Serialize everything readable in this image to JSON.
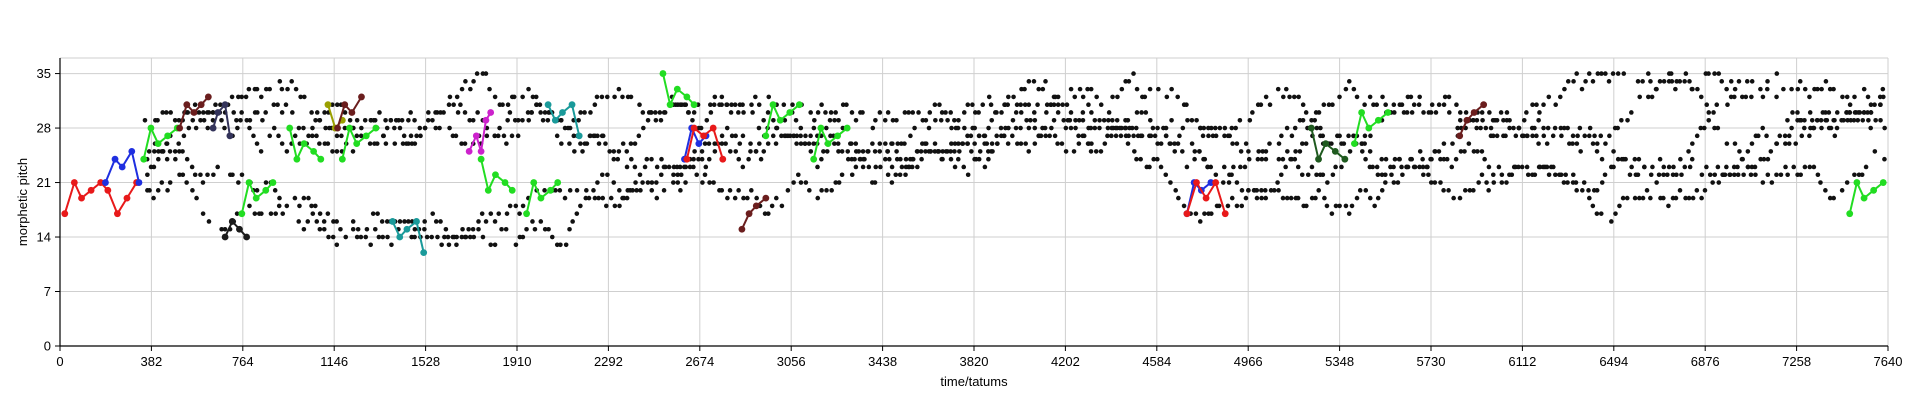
{
  "chart_data": {
    "type": "scatter",
    "title": "",
    "xlabel": "time/tatums",
    "ylabel": "morphetic pitch",
    "xlim": [
      0,
      7640
    ],
    "ylim": [
      0,
      37
    ],
    "x_ticks": [
      0,
      382,
      764,
      1146,
      1528,
      1910,
      2292,
      2674,
      3056,
      3438,
      3820,
      4202,
      4584,
      4966,
      5348,
      5730,
      6112,
      6494,
      6876,
      7258,
      7640
    ],
    "y_ticks": [
      0,
      7,
      14,
      21,
      28,
      35
    ],
    "grid": true,
    "legend": "none",
    "note_color": "#000000",
    "background_points": {
      "seed": 7,
      "count": 2100,
      "x_range": [
        0,
        7640
      ],
      "description_free": true
    },
    "series": [
      {
        "color": "#e8191a",
        "x": [
          20,
          60,
          90,
          130,
          170,
          200,
          240,
          280,
          320
        ],
        "y": [
          17,
          21,
          19,
          20,
          21,
          20,
          17,
          19,
          21
        ]
      },
      {
        "color": "#1f2fe0",
        "x": [
          190,
          230,
          260,
          300,
          330
        ],
        "y": [
          21,
          24,
          23,
          25,
          21
        ]
      },
      {
        "color": "#22dd22",
        "x": [
          350,
          380,
          410,
          450,
          490
        ],
        "y": [
          24,
          28,
          26,
          27,
          28
        ]
      },
      {
        "color": "#6b1e1e",
        "x": [
          500,
          530,
          560,
          590,
          620
        ],
        "y": [
          28,
          31,
          30,
          31,
          32
        ]
      },
      {
        "color": "#33335a",
        "x": [
          640,
          660,
          690,
          710
        ],
        "y": [
          28,
          30,
          31,
          27
        ]
      },
      {
        "color": "#1a1a1a",
        "x": [
          690,
          720,
          750,
          780
        ],
        "y": [
          14,
          16,
          15,
          14
        ]
      },
      {
        "color": "#22dd22",
        "x": [
          760,
          790,
          820,
          860,
          890
        ],
        "y": [
          17,
          21,
          19,
          20,
          21
        ]
      },
      {
        "color": "#22dd22",
        "x": [
          960,
          990,
          1020,
          1060,
          1090
        ],
        "y": [
          28,
          24,
          26,
          25,
          24
        ]
      },
      {
        "color": "#9aa000",
        "x": [
          1120,
          1150,
          1180
        ],
        "y": [
          31,
          28,
          29
        ]
      },
      {
        "color": "#6b1e1e",
        "x": [
          1160,
          1190,
          1220,
          1260
        ],
        "y": [
          28,
          31,
          30,
          32
        ]
      },
      {
        "color": "#22dd22",
        "x": [
          1180,
          1210,
          1240,
          1280,
          1320
        ],
        "y": [
          24,
          28,
          26,
          27,
          28
        ]
      },
      {
        "color": "#1a9a9a",
        "x": [
          1390,
          1420,
          1450,
          1490,
          1520
        ],
        "y": [
          16,
          14,
          15,
          16,
          12
        ]
      },
      {
        "color": "#cc22cc",
        "x": [
          1710,
          1740,
          1760,
          1780,
          1800
        ],
        "y": [
          25,
          27,
          25,
          29,
          30
        ]
      },
      {
        "color": "#22dd22",
        "x": [
          1760,
          1790,
          1820,
          1860,
          1890
        ],
        "y": [
          24,
          20,
          22,
          21,
          20
        ]
      },
      {
        "color": "#22dd22",
        "x": [
          1950,
          1980,
          2010,
          2050,
          2080
        ],
        "y": [
          17,
          21,
          19,
          20,
          21
        ]
      },
      {
        "color": "#1a9a9a",
        "x": [
          2040,
          2070,
          2100,
          2140,
          2170
        ],
        "y": [
          31,
          29,
          30,
          31,
          27
        ]
      },
      {
        "color": "#22dd22",
        "x": [
          2520,
          2550,
          2580,
          2620,
          2650
        ],
        "y": [
          35,
          31,
          33,
          32,
          31
        ]
      },
      {
        "color": "#1f2fe0",
        "x": [
          2610,
          2640,
          2670,
          2700
        ],
        "y": [
          24,
          28,
          26,
          27
        ]
      },
      {
        "color": "#e8191a",
        "x": [
          2620,
          2650,
          2690,
          2730,
          2770
        ],
        "y": [
          24,
          28,
          27,
          28,
          24
        ]
      },
      {
        "color": "#6b1e1e",
        "x": [
          2850,
          2880,
          2910,
          2950
        ],
        "y": [
          15,
          17,
          18,
          19
        ]
      },
      {
        "color": "#22dd22",
        "x": [
          2950,
          2980,
          3010,
          3050,
          3090
        ],
        "y": [
          27,
          31,
          29,
          30,
          31
        ]
      },
      {
        "color": "#22dd22",
        "x": [
          3150,
          3180,
          3210,
          3250,
          3290
        ],
        "y": [
          24,
          28,
          26,
          27,
          28
        ]
      },
      {
        "color": "#1f2fe0",
        "x": [
          4710,
          4740,
          4770,
          4810
        ],
        "y": [
          17,
          21,
          20,
          21
        ]
      },
      {
        "color": "#e8191a",
        "x": [
          4710,
          4750,
          4790,
          4830,
          4870
        ],
        "y": [
          17,
          21,
          19,
          21,
          17
        ]
      },
      {
        "color": "#1f5a1f",
        "x": [
          5230,
          5260,
          5290,
          5330,
          5370
        ],
        "y": [
          28,
          24,
          26,
          25,
          24
        ]
      },
      {
        "color": "#22dd22",
        "x": [
          5410,
          5440,
          5470,
          5510,
          5550
        ],
        "y": [
          26,
          30,
          28,
          29,
          30
        ]
      },
      {
        "color": "#6b1e1e",
        "x": [
          5850,
          5880,
          5910,
          5950
        ],
        "y": [
          27,
          29,
          30,
          31
        ]
      },
      {
        "color": "#22dd22",
        "x": [
          7480,
          7510,
          7540,
          7580,
          7620
        ],
        "y": [
          17,
          21,
          19,
          20,
          21
        ]
      }
    ]
  }
}
